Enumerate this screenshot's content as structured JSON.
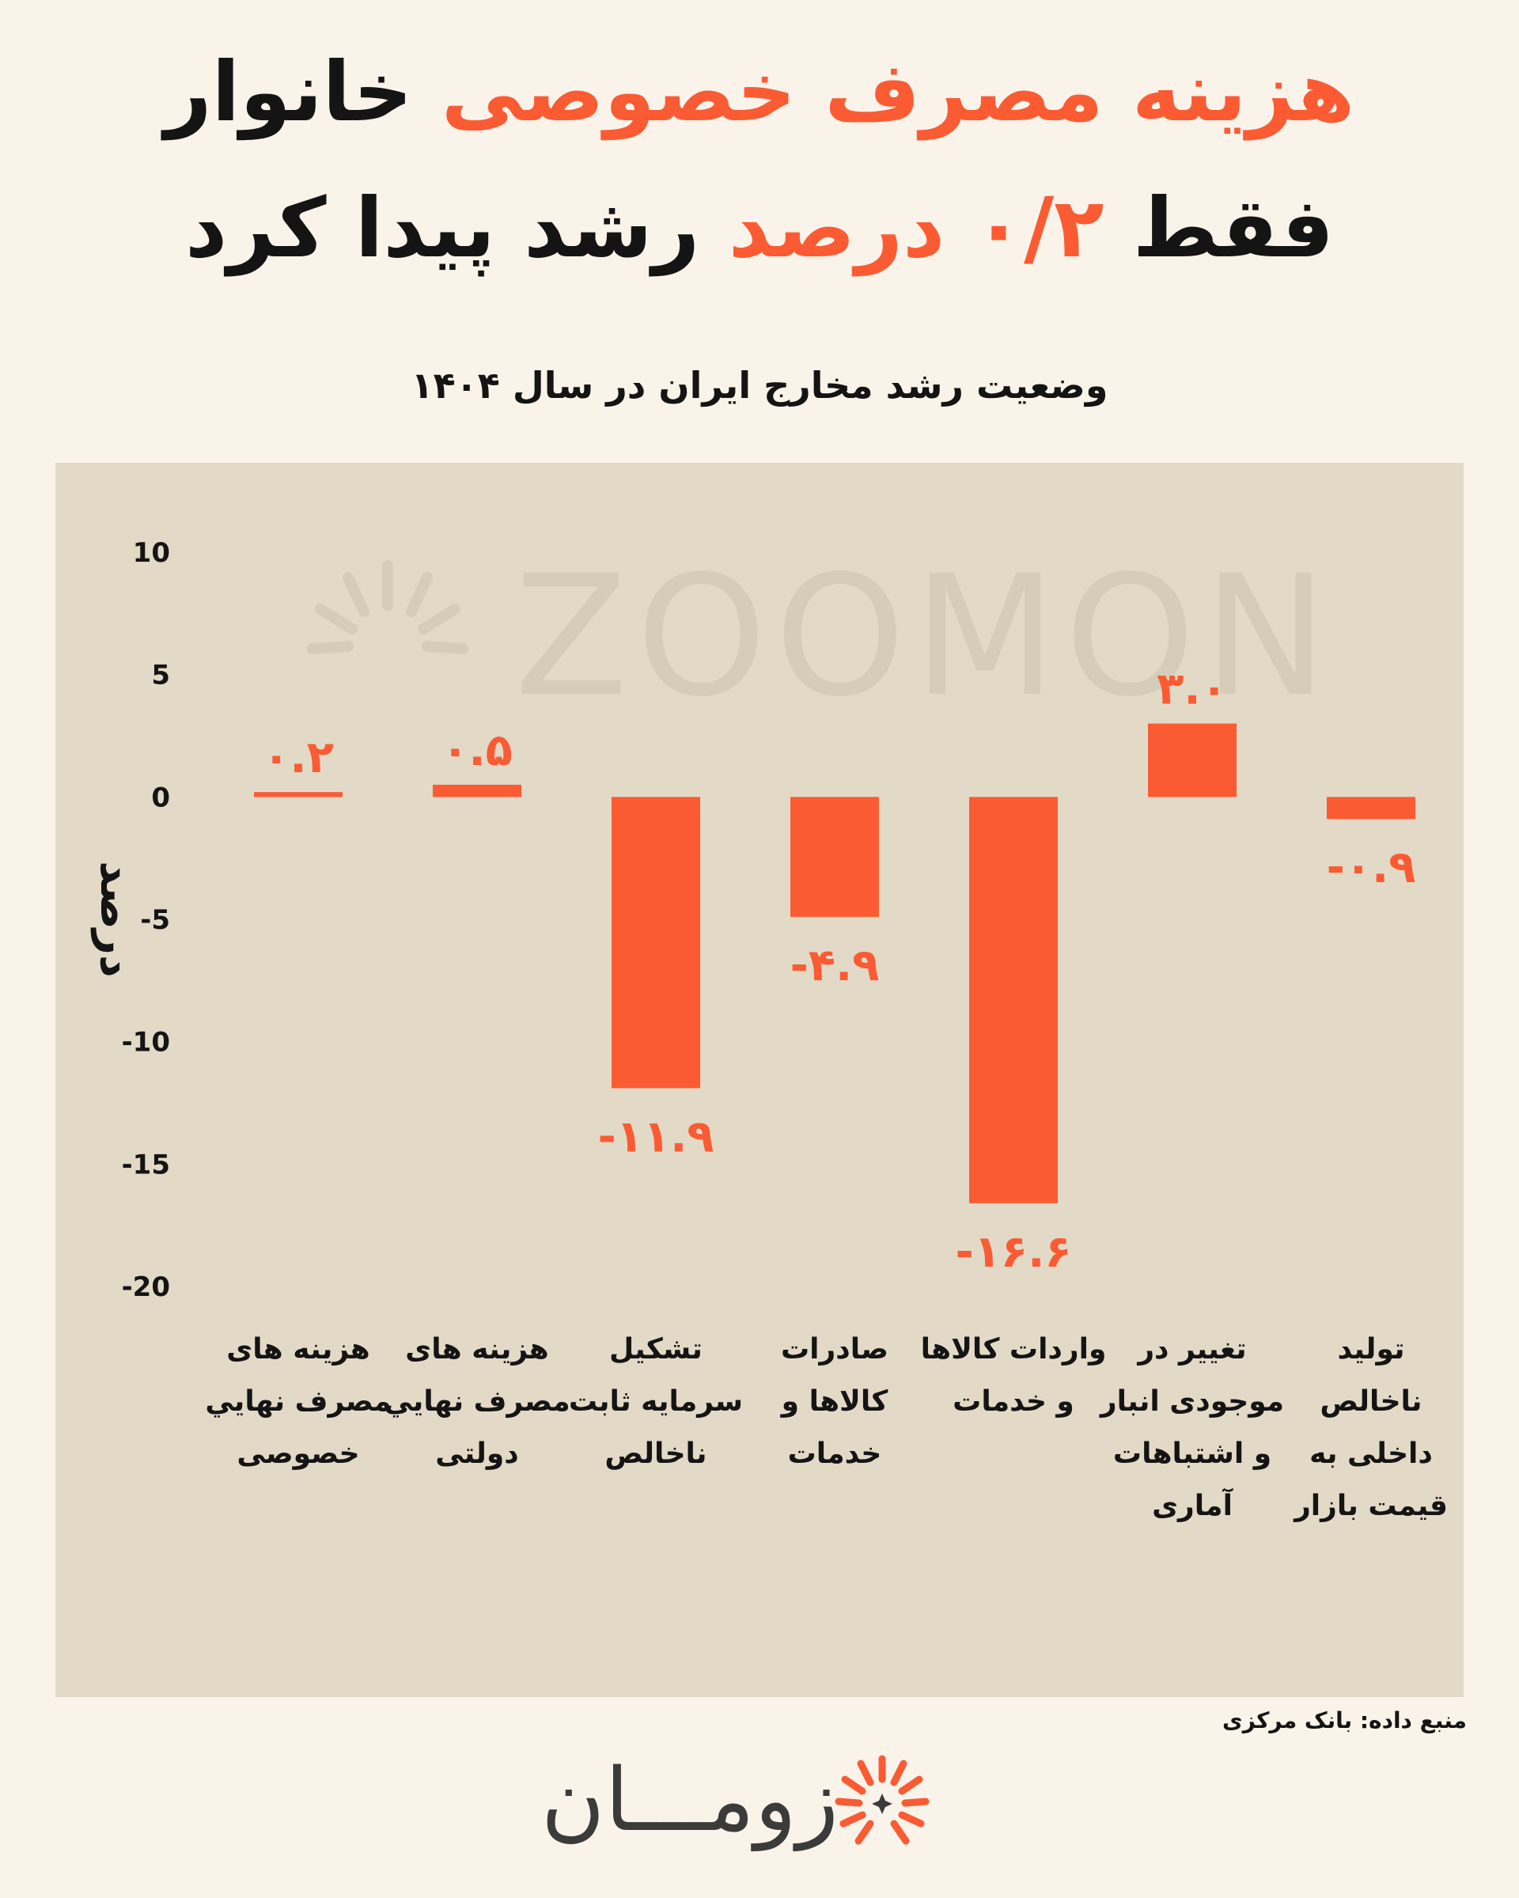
{
  "headline": {
    "line1_accent": "هزینه مصرف خصوصی",
    "line1_rest": "خانوار",
    "line2_start": "فقط",
    "line2_accent": "۰/۲ درصد",
    "line2_end": "رشد پیدا کرد"
  },
  "subtitle": "وضعیت رشد مخارج ایران در سال ۱۴۰۴",
  "watermark": "ZOOMON",
  "source": "منبع داده: بانک مرکزی",
  "logo": {
    "text": "زومـــان",
    "icon": "sunburst-logo-icon"
  },
  "colors": {
    "accent": "#fb5b33",
    "background": "#faf3ea",
    "panel": "#e3d9c7",
    "text": "#141414"
  },
  "chart_data": {
    "type": "bar",
    "ylabel": "درصد",
    "ylim": [
      -20,
      10
    ],
    "yticks": [
      10,
      5,
      0,
      -5,
      -10,
      -15,
      -20
    ],
    "ytick_labels": [
      "10",
      "5",
      "0",
      "-5",
      "-10",
      "-15",
      "-20"
    ],
    "categories": [
      "هزینه های\nمصرف نهایي\nخصوصی",
      "هزینه های\nمصرف نهایي\nدولتی",
      "تشکیل\nسرمایه ثابت\nناخالص",
      "صادرات\nکالاها و\nخدمات",
      "واردات کالاها\nو خدمات",
      "تغییر در\nموجودی انبار\nو اشتباهات\nآماری",
      "تولید\nناخالص\nداخلی به\nقیمت بازار"
    ],
    "values": [
      0.2,
      0.5,
      -11.9,
      -4.9,
      -16.6,
      3.0,
      -0.9
    ],
    "value_labels": [
      "۰.۲",
      "۰.۵",
      "-۱۱.۹",
      "-۴.۹",
      "-۱۶.۶",
      "۳.۰",
      "-۰.۹"
    ],
    "grid": false,
    "legend": false
  }
}
